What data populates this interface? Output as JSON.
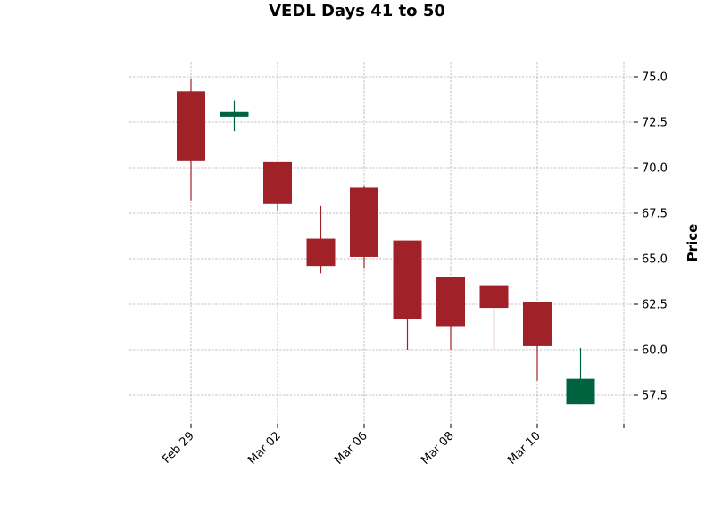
{
  "chart_data": {
    "type": "candlestick",
    "title": "VEDL Days 41 to 50",
    "ylabel": "Price",
    "xlabel": "",
    "ylim": [
      56.2,
      75.8
    ],
    "y_ticks": [
      57.5,
      60.0,
      62.5,
      65.0,
      67.5,
      70.0,
      72.5,
      75.0
    ],
    "y_tick_labels": [
      "57.5",
      "60.0",
      "62.5",
      "65.0",
      "67.5",
      "70.0",
      "72.5",
      "75.0"
    ],
    "grid": true,
    "x_tick_labels": [
      {
        "label": "Feb 29",
        "index": 0
      },
      {
        "label": "Mar 02",
        "index": 2
      },
      {
        "label": "Mar 06",
        "index": 4
      },
      {
        "label": "Mar 08",
        "index": 6
      },
      {
        "label": "Mar 10",
        "index": 8
      },
      {
        "label": "",
        "index": 10
      }
    ],
    "candles": [
      {
        "open": 74.2,
        "high": 74.9,
        "low": 68.2,
        "close": 70.4
      },
      {
        "open": 72.8,
        "high": 73.7,
        "low": 72.0,
        "close": 73.1
      },
      {
        "open": 70.3,
        "high": 70.3,
        "low": 67.6,
        "close": 68.0
      },
      {
        "open": 66.1,
        "high": 67.9,
        "low": 64.2,
        "close": 64.6
      },
      {
        "open": 68.9,
        "high": 69.0,
        "low": 64.5,
        "close": 65.1
      },
      {
        "open": 66.0,
        "high": 66.0,
        "low": 60.0,
        "close": 61.7
      },
      {
        "open": 64.0,
        "high": 64.0,
        "low": 60.0,
        "close": 61.3
      },
      {
        "open": 63.5,
        "high": 63.5,
        "low": 60.0,
        "close": 62.3
      },
      {
        "open": 62.6,
        "high": 62.6,
        "low": 58.3,
        "close": 60.2
      },
      {
        "open": 57.0,
        "high": 60.1,
        "low": 57.0,
        "close": 58.4
      }
    ],
    "colors": {
      "up": "#006340",
      "down": "#a02128",
      "grid": "#b0b0b0"
    }
  }
}
